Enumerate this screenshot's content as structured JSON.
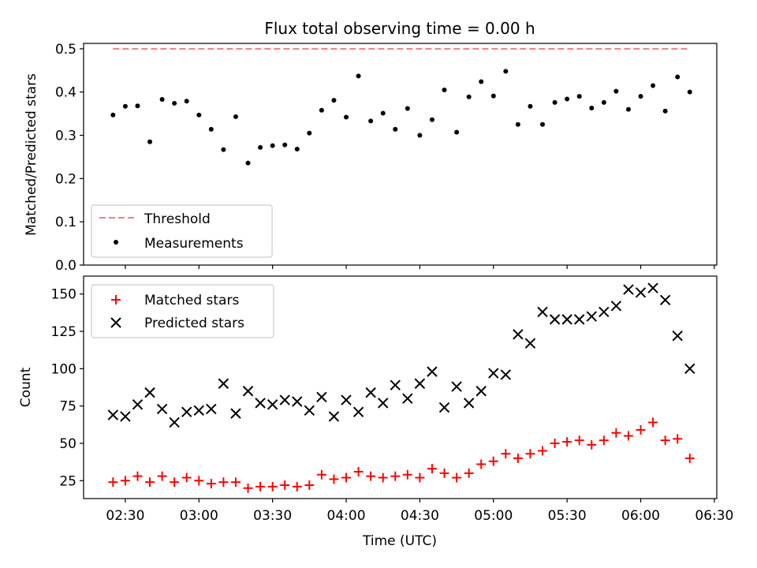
{
  "title": "Flux total observing time = 0.00 h",
  "colors": {
    "threshold": "#f08080",
    "measurements": "#000000",
    "matched": "#ff0000",
    "predicted": "#000000"
  },
  "chart_data": [
    {
      "type": "scatter",
      "ylabel": "Matched/Predicted stars",
      "ylim": [
        0,
        0.5
      ],
      "yticks": [
        "0.0",
        "0.1",
        "0.2",
        "0.3",
        "0.4",
        "0.5"
      ],
      "legend": {
        "placement": "lower-left",
        "entries": [
          "Threshold",
          "Measurements"
        ]
      },
      "threshold": {
        "name": "Threshold",
        "y": 0.5,
        "x_start": "02:25",
        "x_end": "06:20",
        "style": "dashed"
      },
      "series": [
        {
          "name": "Measurements",
          "marker": "dot",
          "x": [
            "02:25",
            "02:30",
            "02:35",
            "02:40",
            "02:45",
            "02:50",
            "02:55",
            "03:00",
            "03:05",
            "03:10",
            "03:15",
            "03:20",
            "03:25",
            "03:30",
            "03:35",
            "03:40",
            "03:45",
            "03:50",
            "03:55",
            "04:00",
            "04:05",
            "04:10",
            "04:15",
            "04:20",
            "04:25",
            "04:30",
            "04:35",
            "04:40",
            "04:45",
            "04:50",
            "04:55",
            "05:00",
            "05:05",
            "05:10",
            "05:15",
            "05:20",
            "05:25",
            "05:30",
            "05:35",
            "05:40",
            "05:45",
            "05:50",
            "05:55",
            "06:00",
            "06:05",
            "06:10",
            "06:15",
            "06:20"
          ],
          "y": [
            0.347,
            0.367,
            0.368,
            0.285,
            0.383,
            0.374,
            0.379,
            0.347,
            0.314,
            0.267,
            0.343,
            0.236,
            0.272,
            0.276,
            0.278,
            0.268,
            0.305,
            0.358,
            0.381,
            0.342,
            0.437,
            0.333,
            0.351,
            0.314,
            0.362,
            0.3,
            0.336,
            0.405,
            0.307,
            0.389,
            0.424,
            0.391,
            0.448,
            0.325,
            0.367,
            0.325,
            0.376,
            0.384,
            0.39,
            0.363,
            0.376,
            0.402,
            0.36,
            0.39,
            0.415,
            0.356,
            0.435,
            0.4
          ]
        }
      ]
    },
    {
      "type": "scatter",
      "xlabel": "Time (UTC)",
      "ylabel": "Count",
      "xlim": [
        "02:13",
        "06:31"
      ],
      "ylim": [
        13,
        162
      ],
      "xticks": [
        "02:30",
        "03:00",
        "03:30",
        "04:00",
        "04:30",
        "05:00",
        "05:30",
        "06:00",
        "06:30"
      ],
      "yticks": [
        "25",
        "50",
        "75",
        "100",
        "125",
        "150"
      ],
      "legend": {
        "placement": "top-left",
        "entries": [
          "Matched stars",
          "Predicted stars"
        ]
      },
      "series": [
        {
          "name": "Matched stars",
          "marker": "plus",
          "x": [
            "02:25",
            "02:30",
            "02:35",
            "02:40",
            "02:45",
            "02:50",
            "02:55",
            "03:00",
            "03:05",
            "03:10",
            "03:15",
            "03:20",
            "03:25",
            "03:30",
            "03:35",
            "03:40",
            "03:45",
            "03:50",
            "03:55",
            "04:00",
            "04:05",
            "04:10",
            "04:15",
            "04:20",
            "04:25",
            "04:30",
            "04:35",
            "04:40",
            "04:45",
            "04:50",
            "04:55",
            "05:00",
            "05:05",
            "05:10",
            "05:15",
            "05:20",
            "05:25",
            "05:30",
            "05:35",
            "05:40",
            "05:45",
            "05:50",
            "05:55",
            "06:00",
            "06:05",
            "06:10",
            "06:15",
            "06:20"
          ],
          "y": [
            24,
            25,
            28,
            24,
            28,
            24,
            27,
            25,
            23,
            24,
            24,
            20,
            21,
            21,
            22,
            21,
            22,
            29,
            26,
            27,
            31,
            28,
            27,
            28,
            29,
            27,
            33,
            30,
            27,
            30,
            36,
            38,
            43,
            40,
            43,
            45,
            50,
            51,
            52,
            49,
            52,
            57,
            55,
            59,
            64,
            52,
            53,
            40
          ]
        },
        {
          "name": "Predicted stars",
          "marker": "x",
          "x": [
            "02:25",
            "02:30",
            "02:35",
            "02:40",
            "02:45",
            "02:50",
            "02:55",
            "03:00",
            "03:05",
            "03:10",
            "03:15",
            "03:20",
            "03:25",
            "03:30",
            "03:35",
            "03:40",
            "03:45",
            "03:50",
            "03:55",
            "04:00",
            "04:05",
            "04:10",
            "04:15",
            "04:20",
            "04:25",
            "04:30",
            "04:35",
            "04:40",
            "04:45",
            "04:50",
            "04:55",
            "05:00",
            "05:05",
            "05:10",
            "05:15",
            "05:20",
            "05:25",
            "05:30",
            "05:35",
            "05:40",
            "05:45",
            "05:50",
            "05:55",
            "06:00",
            "06:05",
            "06:10",
            "06:15",
            "06:20"
          ],
          "y": [
            69,
            68,
            76,
            84,
            73,
            64,
            71,
            72,
            73,
            90,
            70,
            85,
            77,
            76,
            79,
            78,
            72,
            81,
            68,
            79,
            71,
            84,
            77,
            89,
            80,
            90,
            98,
            74,
            88,
            77,
            85,
            97,
            96,
            123,
            117,
            138,
            133,
            133,
            133,
            135,
            138,
            142,
            153,
            151,
            154,
            146,
            122,
            100
          ]
        }
      ]
    }
  ]
}
